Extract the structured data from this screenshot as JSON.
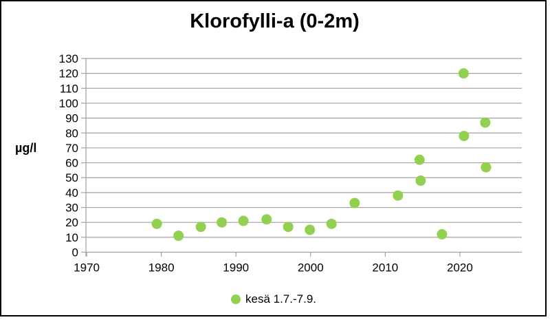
{
  "chart_data": {
    "type": "scatter",
    "title": "Klorofylli-a (0-2m)",
    "ylabel": "µg/l",
    "xlabel": "",
    "grid": "horizontal",
    "legend_position": "bottom",
    "xlim": [
      1969.9,
      2028.3
    ],
    "ylim": [
      0,
      130
    ],
    "x_ticks": [
      1970,
      1980,
      1990,
      2000,
      2010,
      2020
    ],
    "y_ticks": [
      0,
      10,
      20,
      30,
      40,
      50,
      60,
      70,
      80,
      90,
      100,
      110,
      120,
      130
    ],
    "colors": {
      "marker": "#92d050",
      "grid": "#a0a0a0",
      "axis": "#a0a0a0",
      "text": "#000000",
      "frame": "#000000"
    },
    "series": [
      {
        "name": "kesä 1.7.-7.9.",
        "color": "#92d050",
        "points": [
          {
            "x": 1979.4,
            "y": 19
          },
          {
            "x": 1982.3,
            "y": 11
          },
          {
            "x": 1985.3,
            "y": 17
          },
          {
            "x": 1988.1,
            "y": 20
          },
          {
            "x": 1991.0,
            "y": 21
          },
          {
            "x": 1994.1,
            "y": 22
          },
          {
            "x": 1997.0,
            "y": 17
          },
          {
            "x": 1999.9,
            "y": 15
          },
          {
            "x": 2002.8,
            "y": 19
          },
          {
            "x": 2005.9,
            "y": 33
          },
          {
            "x": 2011.7,
            "y": 38
          },
          {
            "x": 2014.6,
            "y": 62
          },
          {
            "x": 2014.75,
            "y": 48
          },
          {
            "x": 2017.6,
            "y": 12
          },
          {
            "x": 2020.5,
            "y": 120
          },
          {
            "x": 2020.55,
            "y": 78
          },
          {
            "x": 2023.4,
            "y": 87
          },
          {
            "x": 2023.5,
            "y": 57
          }
        ]
      }
    ]
  }
}
